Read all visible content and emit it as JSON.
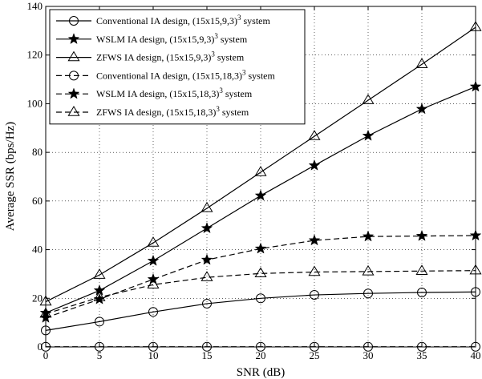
{
  "chart_data": {
    "type": "line",
    "title": "",
    "xlabel": "SNR (dB)",
    "ylabel": "Average SSR (bps/Hz)",
    "xlim": [
      0,
      40
    ],
    "ylim": [
      0,
      140
    ],
    "x_ticks": [
      0,
      5,
      10,
      15,
      20,
      25,
      30,
      35,
      40
    ],
    "y_ticks": [
      0,
      20,
      40,
      60,
      80,
      100,
      120,
      140
    ],
    "grid": true,
    "legend_position": "top-left",
    "x": [
      0,
      5,
      10,
      15,
      20,
      25,
      30,
      35,
      40
    ],
    "series": [
      {
        "name": "Conventional IA design, (15x15,9,3)",
        "name_sup": "3",
        "name_suffix": " system",
        "marker": "circle",
        "dash": "solid",
        "values": [
          6.8,
          10.4,
          14.4,
          17.8,
          20.0,
          21.4,
          22.0,
          22.4,
          22.6
        ]
      },
      {
        "name": "WSLM IA design, (15x15,9,3)",
        "name_sup": "3",
        "name_suffix": " system",
        "marker": "star",
        "dash": "solid",
        "values": [
          14.0,
          23.2,
          35.4,
          48.8,
          62.2,
          74.6,
          86.8,
          97.8,
          107.0
        ]
      },
      {
        "name": "ZFWS IA design, (15x15,9,3)",
        "name_sup": "3",
        "name_suffix": " system",
        "marker": "triangle",
        "dash": "solid",
        "values": [
          18.6,
          29.6,
          42.8,
          57.0,
          71.8,
          86.6,
          101.4,
          116.2,
          131.4
        ]
      },
      {
        "name": "Conventional IA design, (15x15,18,3)",
        "name_sup": "3",
        "name_suffix": " system",
        "marker": "circle",
        "dash": "dashed",
        "values": [
          0.1,
          0.1,
          0.1,
          0.1,
          0.1,
          0.1,
          0.1,
          0.1,
          0.1
        ]
      },
      {
        "name": "WSLM IA design, (15x15,18,3)",
        "name_sup": "3",
        "name_suffix": " system",
        "marker": "star",
        "dash": "dashed",
        "values": [
          12.0,
          19.6,
          27.8,
          35.8,
          40.4,
          43.8,
          45.4,
          45.6,
          45.8
        ]
      },
      {
        "name": "ZFWS IA design, (15x15,18,3)",
        "name_sup": "3",
        "name_suffix": " system",
        "marker": "triangle",
        "dash": "dashed",
        "values": [
          13.6,
          20.4,
          25.6,
          28.6,
          30.2,
          30.8,
          31.0,
          31.2,
          31.4
        ]
      }
    ]
  }
}
